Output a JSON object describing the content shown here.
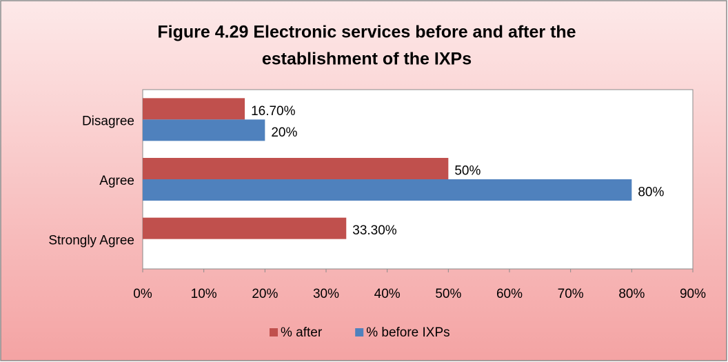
{
  "chart_data": {
    "type": "hbar",
    "title": [
      "Figure 4.29 Electronic services before and after the",
      "establishment of the IXPs"
    ],
    "categories": [
      "Strongly Agree",
      "Agree",
      "Disagree"
    ],
    "series": [
      {
        "name": "% after",
        "color": "#c0504d",
        "values": [
          33.3,
          50,
          16.7
        ],
        "value_labels": [
          "33.30%",
          "50%",
          "16.70%"
        ]
      },
      {
        "name": "% before IXPs",
        "color": "#4f81bd",
        "values": [
          null,
          80,
          20
        ],
        "value_labels": [
          null,
          "80%",
          "20%"
        ]
      }
    ],
    "xlim": [
      0,
      90
    ],
    "xticks": [
      {
        "value": 0,
        "label": "0%"
      },
      {
        "value": 10,
        "label": "10%"
      },
      {
        "value": 20,
        "label": "20%"
      },
      {
        "value": 30,
        "label": "30%"
      },
      {
        "value": 40,
        "label": "40%"
      },
      {
        "value": 50,
        "label": "50%"
      },
      {
        "value": 60,
        "label": "60%"
      },
      {
        "value": 70,
        "label": "70%"
      },
      {
        "value": 80,
        "label": "80%"
      },
      {
        "value": 90,
        "label": "90%"
      }
    ],
    "legend": "bottom",
    "grid": false
  }
}
